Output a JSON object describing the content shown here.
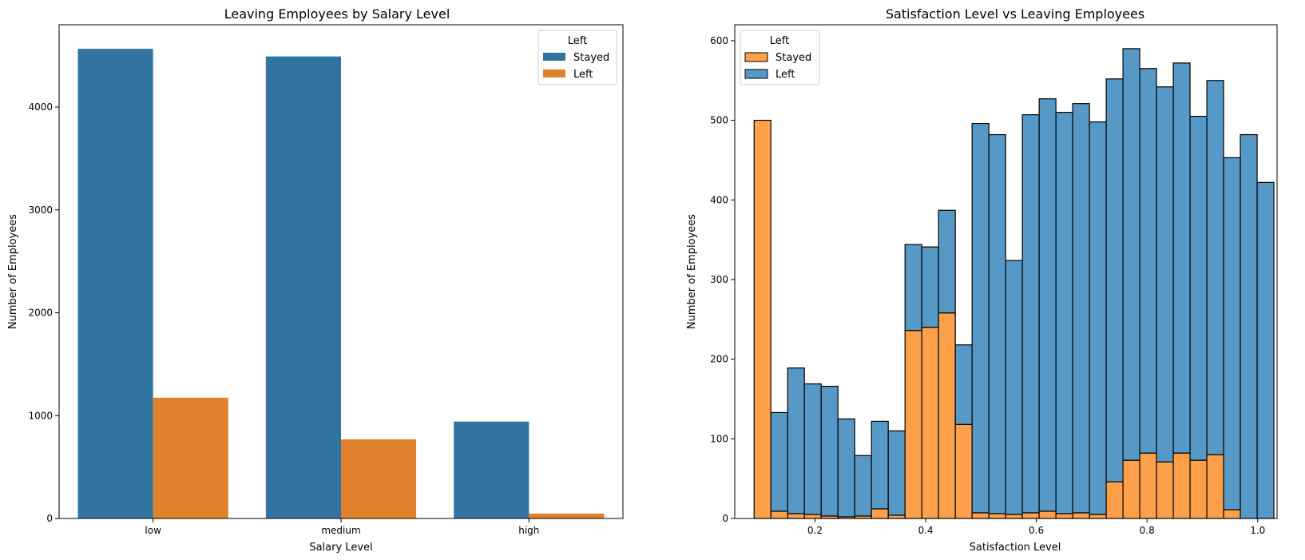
{
  "colors": {
    "blue": "#3274a1",
    "orange": "#e1812c",
    "hist_blue": "#5799c6",
    "hist_orange": "#fea04a"
  },
  "chart_data": [
    {
      "type": "bar",
      "title": "Leaving Employees by Salary Level",
      "xlabel": "Salary Level",
      "ylabel": "Number of Employees",
      "categories": [
        "low",
        "medium",
        "high"
      ],
      "series": [
        {
          "name": "Stayed",
          "values": [
            4566,
            4492,
            942
          ]
        },
        {
          "name": "Left",
          "values": [
            1174,
            769,
            48
          ]
        }
      ],
      "ylim": [
        0,
        4800
      ],
      "yticks": [
        0,
        1000,
        2000,
        3000,
        4000
      ],
      "legend": {
        "title": "Left",
        "placement": "top-right",
        "entries": [
          "Stayed",
          "Left"
        ]
      },
      "grid": false
    },
    {
      "type": "bar",
      "stacked": true,
      "title": "Satisfaction Level vs Leaving Employees",
      "xlabel": "Satisfaction Level",
      "ylabel": "Number of Employees",
      "bin_start": 0.09,
      "bin_width": 0.0303,
      "series": [
        {
          "name": "Stayed",
          "values": [
            500,
            9,
            6,
            5,
            3,
            2,
            3,
            12,
            4,
            236,
            240,
            258,
            118,
            7,
            6,
            5,
            7,
            9,
            6,
            7,
            5,
            46,
            73,
            82,
            71,
            82,
            73,
            80,
            11,
            0,
            0
          ]
        },
        {
          "name": "Left",
          "values": [
            0,
            124,
            183,
            164,
            163,
            123,
            76,
            110,
            106,
            108,
            101,
            129,
            100,
            489,
            476,
            319,
            500,
            518,
            504,
            514,
            493,
            506,
            517,
            483,
            471,
            490,
            432,
            470,
            442,
            482,
            422
          ]
        }
      ],
      "xlim": [
        0.055,
        1.035
      ],
      "ylim": [
        0,
        620
      ],
      "xticks": [
        0.2,
        0.4,
        0.6,
        0.8,
        1.0
      ],
      "xtick_labels": [
        "0.2",
        "0.4",
        "0.6",
        "0.8",
        "1.0"
      ],
      "yticks": [
        0,
        100,
        200,
        300,
        400,
        500,
        600
      ],
      "legend": {
        "title": "Left",
        "placement": "top-left",
        "entries": [
          "Stayed",
          "Left"
        ]
      },
      "grid": false
    }
  ]
}
